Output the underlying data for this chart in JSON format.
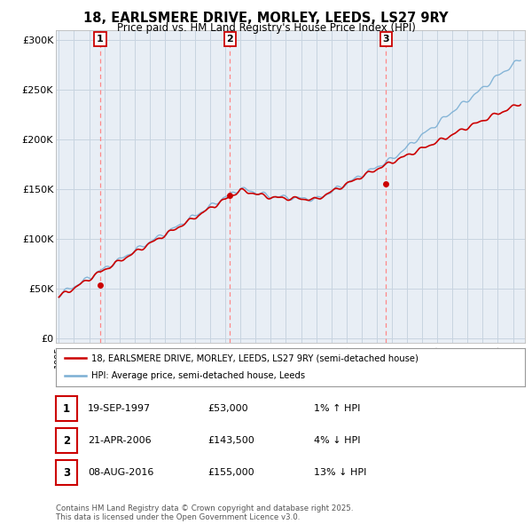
{
  "title": "18, EARLSMERE DRIVE, MORLEY, LEEDS, LS27 9RY",
  "subtitle": "Price paid vs. HM Land Registry's House Price Index (HPI)",
  "ylabel_ticks": [
    "£0",
    "£50K",
    "£100K",
    "£150K",
    "£200K",
    "£250K",
    "£300K"
  ],
  "ytick_values": [
    0,
    50000,
    100000,
    150000,
    200000,
    250000,
    300000
  ],
  "ylim": [
    -5000,
    310000
  ],
  "xlim": [
    1994.8,
    2025.8
  ],
  "sale_color": "#cc0000",
  "hpi_color": "#7BAFD4",
  "vline_color": "#ff8888",
  "sale_dates_num": [
    1997.72,
    2006.31,
    2016.6
  ],
  "sale_prices": [
    53000,
    143500,
    155000
  ],
  "sale_labels": [
    "1",
    "2",
    "3"
  ],
  "legend_sale_label": "18, EARLSMERE DRIVE, MORLEY, LEEDS, LS27 9RY (semi-detached house)",
  "legend_hpi_label": "HPI: Average price, semi-detached house, Leeds",
  "table_rows": [
    [
      "1",
      "19-SEP-1997",
      "£53,000",
      "1% ↑ HPI"
    ],
    [
      "2",
      "21-APR-2006",
      "£143,500",
      "4% ↓ HPI"
    ],
    [
      "3",
      "08-AUG-2016",
      "£155,000",
      "13% ↓ HPI"
    ]
  ],
  "footer_text": "Contains HM Land Registry data © Crown copyright and database right 2025.\nThis data is licensed under the Open Government Licence v3.0.",
  "bg_color": "#ffffff",
  "plot_bg_color": "#e8eef5",
  "grid_color": "#c8d4e0"
}
